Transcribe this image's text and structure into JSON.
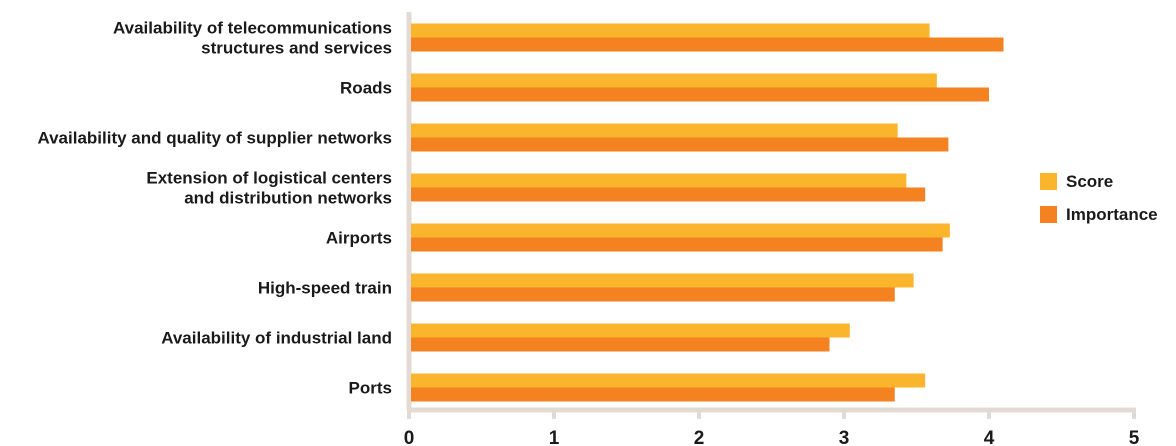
{
  "chart_data": {
    "type": "bar",
    "orientation": "horizontal",
    "categories": [
      [
        "Availability of telecommunications",
        "structures and services"
      ],
      [
        "Roads"
      ],
      [
        "Availability and quality of supplier networks"
      ],
      [
        "Extension of logistical centers",
        "and distribution networks"
      ],
      [
        "Airports"
      ],
      [
        "High-speed train"
      ],
      [
        "Availability of industrial land"
      ],
      [
        "Ports"
      ]
    ],
    "series": [
      {
        "name": "Score",
        "color": "#FBB52C",
        "values": [
          3.59,
          3.64,
          3.37,
          3.43,
          3.73,
          3.48,
          3.04,
          3.56
        ]
      },
      {
        "name": "Importance",
        "color": "#F58220",
        "values": [
          4.1,
          4.0,
          3.72,
          3.56,
          3.68,
          3.35,
          2.9,
          3.35
        ]
      }
    ],
    "xlim": [
      0,
      5
    ],
    "xticks": [
      "0",
      "1",
      "2",
      "3",
      "4",
      "5"
    ],
    "xlabel": "",
    "ylabel": "",
    "title": "",
    "legend_position": "right",
    "axis_color": "#E3DBD3"
  }
}
